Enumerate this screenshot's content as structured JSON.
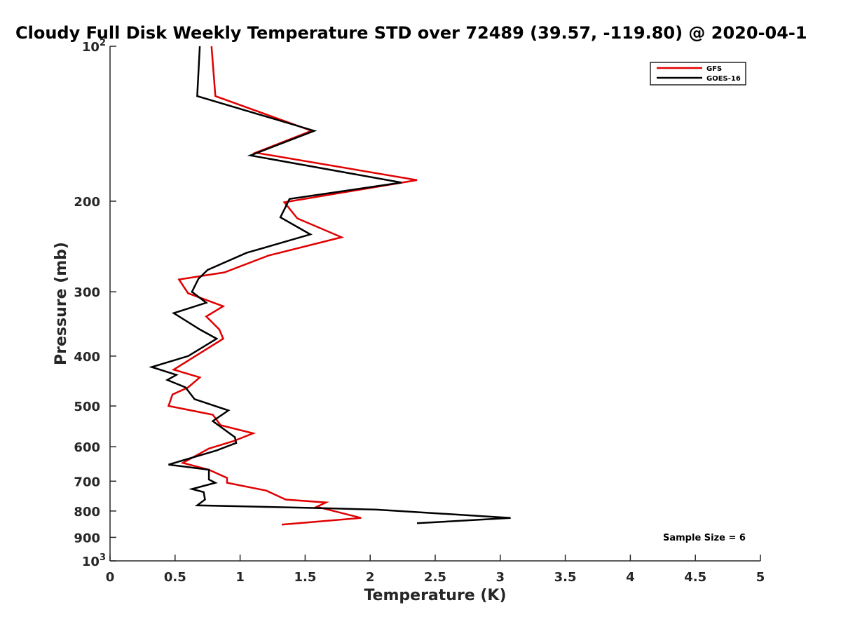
{
  "chart_data": {
    "type": "line",
    "title": "Cloudy Full Disk Weekly Temperature STD over 72489 (39.57, -119.80) @ 2020-04-1",
    "xlabel": "Temperature (K)",
    "ylabel": "Pressure (mb)",
    "xlim": [
      0,
      5
    ],
    "ylim": [
      100,
      1000
    ],
    "yscale": "log",
    "y_reversed": true,
    "x_ticks": [
      "0",
      "0.5",
      "1",
      "1.5",
      "2",
      "2.5",
      "3",
      "3.5",
      "4",
      "4.5",
      "5"
    ],
    "y_ticks": [
      {
        "value": 100,
        "base": "10",
        "exp": "2"
      },
      {
        "value": 200,
        "label": "200"
      },
      {
        "value": 300,
        "label": "300"
      },
      {
        "value": 400,
        "label": "400"
      },
      {
        "value": 500,
        "label": "500"
      },
      {
        "value": 600,
        "label": "600"
      },
      {
        "value": 700,
        "label": "700"
      },
      {
        "value": 800,
        "label": "800"
      },
      {
        "value": 900,
        "label": "900"
      },
      {
        "value": 1000,
        "base": "10",
        "exp": "3"
      }
    ],
    "legend_position": "top-right",
    "annotation": "Sample Size = 6",
    "series": [
      {
        "name": "GFS",
        "color": "#e00000",
        "points": [
          [
            0.78,
            100
          ],
          [
            0.81,
            125
          ],
          [
            1.55,
            146
          ],
          [
            1.12,
            161
          ],
          [
            2.36,
            182
          ],
          [
            1.34,
            201
          ],
          [
            1.44,
            216
          ],
          [
            1.78,
            235
          ],
          [
            1.22,
            255
          ],
          [
            0.88,
            275
          ],
          [
            0.53,
            284
          ],
          [
            0.6,
            302
          ],
          [
            0.87,
            320
          ],
          [
            0.74,
            335
          ],
          [
            0.84,
            355
          ],
          [
            0.87,
            370
          ],
          [
            0.49,
            425
          ],
          [
            0.69,
            440
          ],
          [
            0.6,
            460
          ],
          [
            0.48,
            475
          ],
          [
            0.45,
            500
          ],
          [
            0.79,
            520
          ],
          [
            0.85,
            545
          ],
          [
            1.1,
            565
          ],
          [
            0.95,
            585
          ],
          [
            0.76,
            605
          ],
          [
            0.56,
            645
          ],
          [
            0.76,
            665
          ],
          [
            0.9,
            690
          ],
          [
            0.9,
            705
          ],
          [
            1.2,
            730
          ],
          [
            1.35,
            760
          ],
          [
            1.66,
            770
          ],
          [
            1.59,
            785
          ],
          [
            1.93,
            825
          ],
          [
            1.32,
            850
          ]
        ]
      },
      {
        "name": "GOES-16",
        "color": "#000000",
        "points": [
          [
            0.69,
            100
          ],
          [
            0.67,
            125
          ],
          [
            1.57,
            146
          ],
          [
            1.08,
            163
          ],
          [
            2.24,
            184
          ],
          [
            1.38,
            198
          ],
          [
            1.31,
            215
          ],
          [
            1.54,
            232
          ],
          [
            1.05,
            252
          ],
          [
            0.75,
            272
          ],
          [
            0.68,
            283
          ],
          [
            0.63,
            300
          ],
          [
            0.74,
            315
          ],
          [
            0.49,
            330
          ],
          [
            0.69,
            355
          ],
          [
            0.82,
            370
          ],
          [
            0.6,
            400
          ],
          [
            0.32,
            420
          ],
          [
            0.51,
            435
          ],
          [
            0.44,
            445
          ],
          [
            0.58,
            460
          ],
          [
            0.65,
            485
          ],
          [
            0.91,
            510
          ],
          [
            0.79,
            535
          ],
          [
            0.96,
            575
          ],
          [
            0.97,
            590
          ],
          [
            0.82,
            610
          ],
          [
            0.45,
            650
          ],
          [
            0.76,
            665
          ],
          [
            0.76,
            695
          ],
          [
            0.81,
            705
          ],
          [
            0.63,
            725
          ],
          [
            0.72,
            735
          ],
          [
            0.73,
            760
          ],
          [
            0.67,
            780
          ],
          [
            1.15,
            785
          ],
          [
            1.65,
            790
          ],
          [
            2.05,
            795
          ],
          [
            3.08,
            825
          ],
          [
            2.36,
            845
          ]
        ]
      }
    ]
  }
}
